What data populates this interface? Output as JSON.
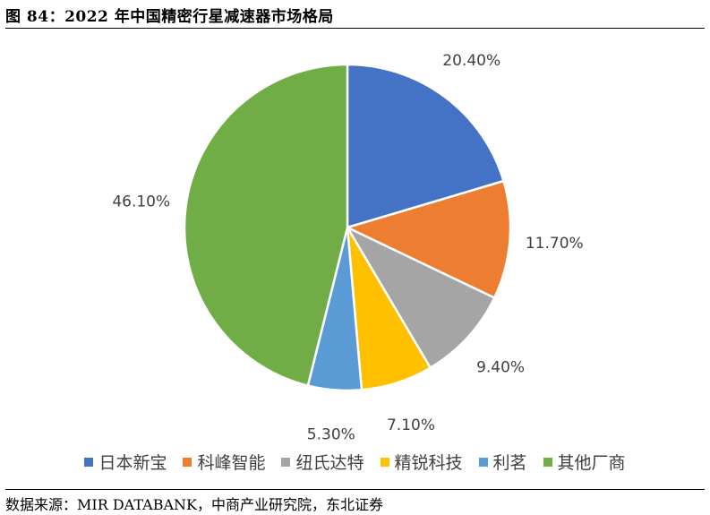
{
  "header": {
    "title": "图 84：2022 年中国精密行星减速器市场格局"
  },
  "footer": {
    "source": "数据来源：MIR DATABANK，中商产业研究院，东北证券"
  },
  "chart_data": {
    "type": "pie",
    "title": "",
    "categories": [
      "日本新宝",
      "科峰智能",
      "纽氏达特",
      "精锐科技",
      "利茗",
      "其他厂商"
    ],
    "values": [
      20.4,
      11.7,
      9.4,
      7.1,
      5.3,
      46.1
    ],
    "labels": [
      "20.40%",
      "11.70%",
      "9.40%",
      "7.10%",
      "5.30%",
      "46.10%"
    ],
    "colors": [
      "#4472C4",
      "#ED7D31",
      "#A5A5A5",
      "#FFC000",
      "#5B9BD5",
      "#70AD47"
    ],
    "start_angle": "12 o'clock",
    "direction": "clockwise",
    "legend_position": "bottom"
  }
}
